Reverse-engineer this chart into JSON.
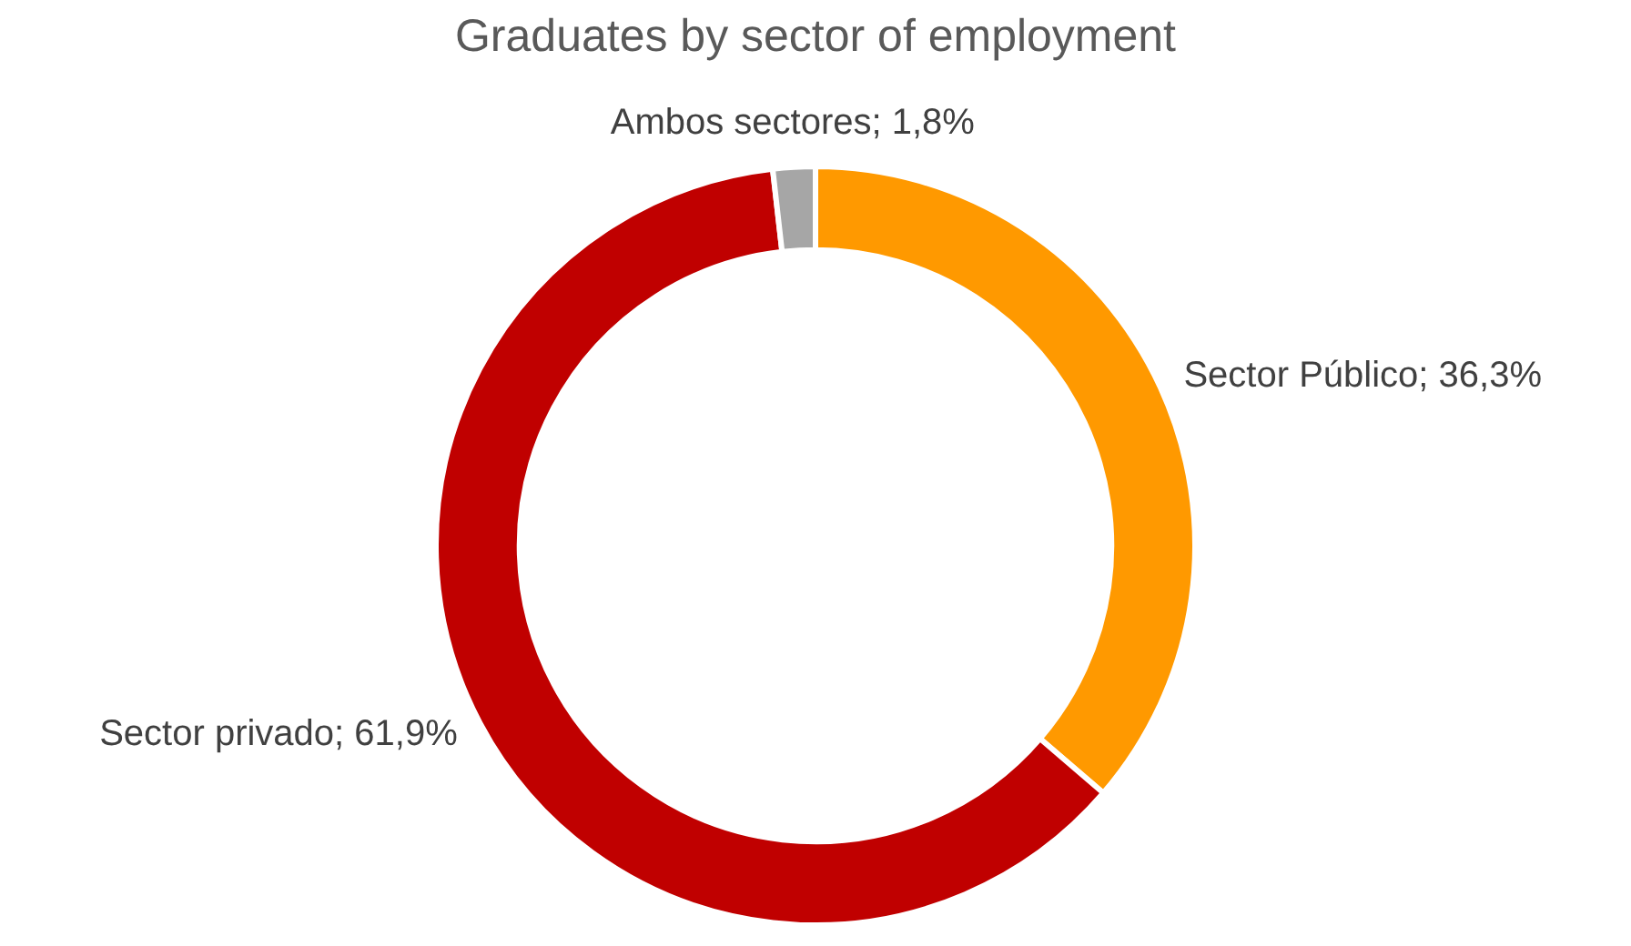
{
  "chart_data": {
    "type": "donut",
    "title": "Graduates by sector of employment",
    "categories": [
      "Sector Público",
      "Sector privado",
      "Ambos sectores"
    ],
    "values": [
      36.3,
      61.9,
      1.8
    ],
    "colors": [
      "#ff9900",
      "#c00000",
      "#a6a6a6"
    ],
    "value_labels": [
      "36,3%",
      "61,9%",
      "1,8%"
    ],
    "legend": false
  }
}
